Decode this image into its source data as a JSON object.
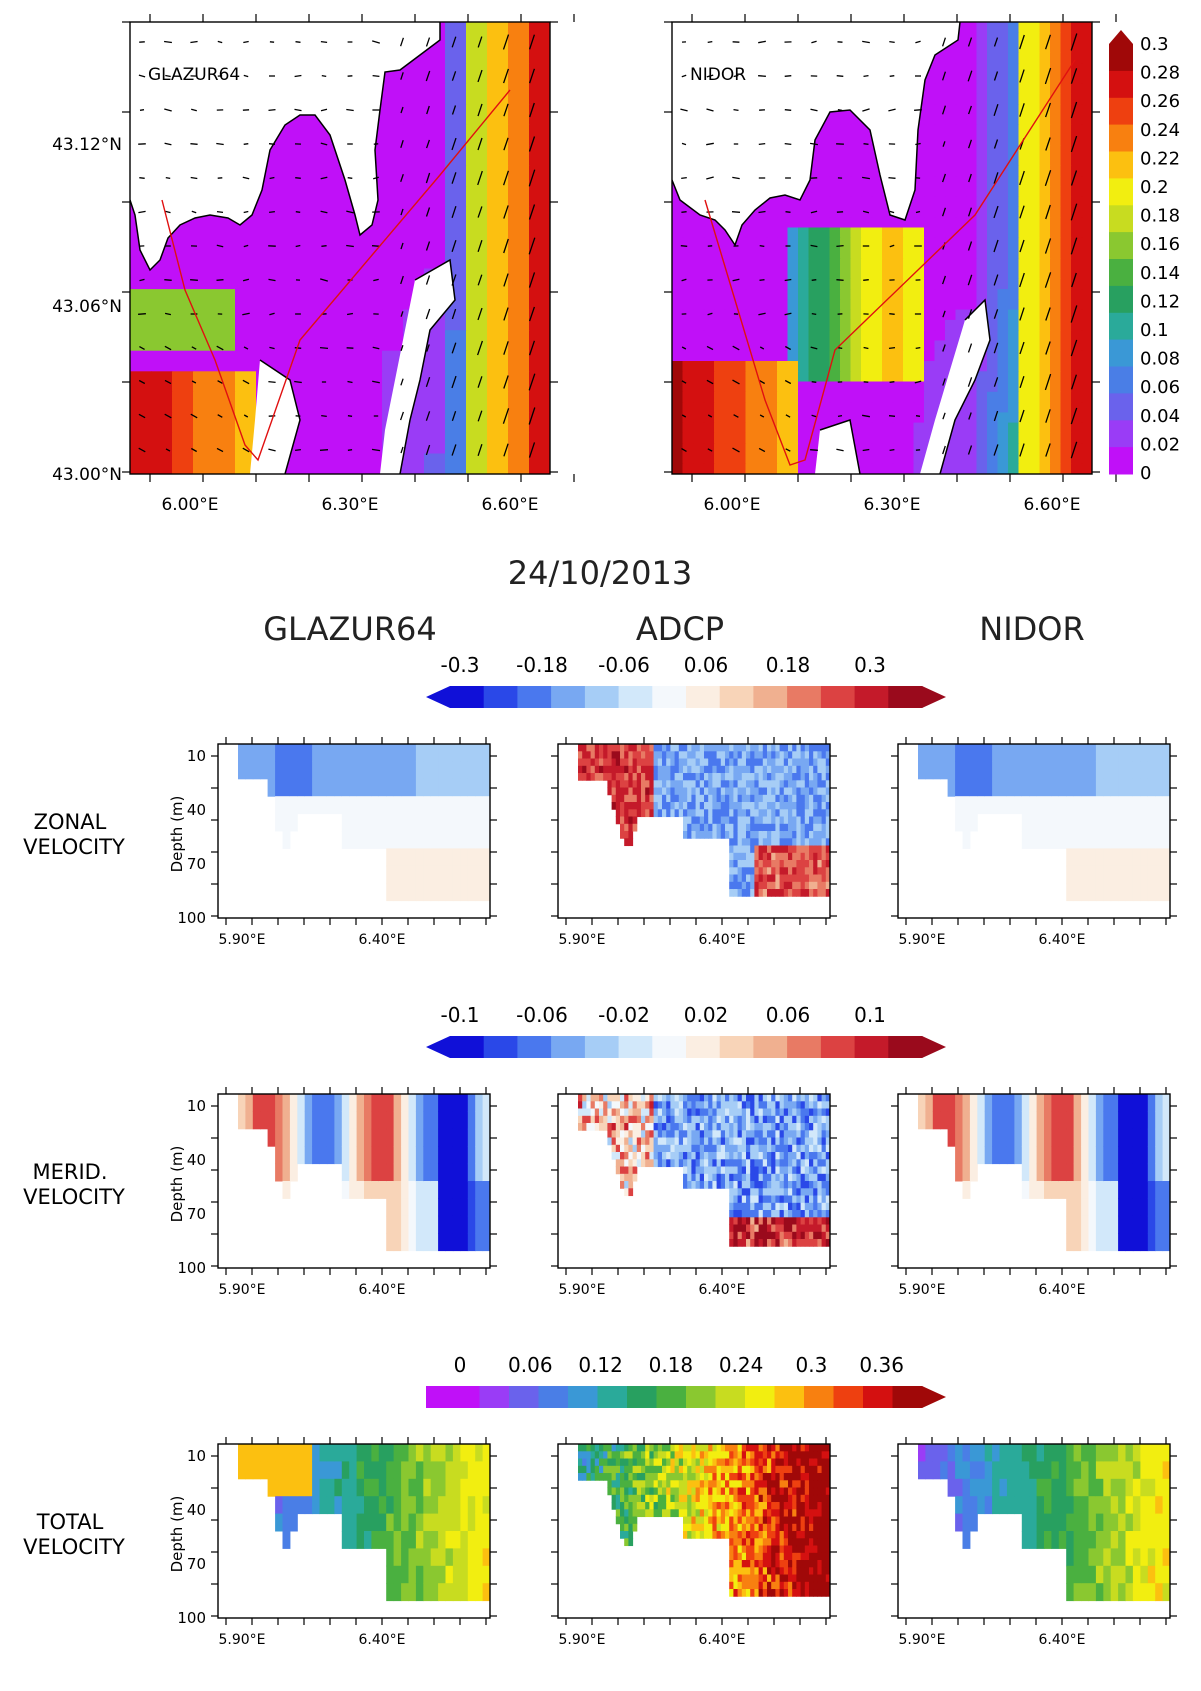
{
  "date_title": "24/10/2013",
  "columns": [
    "GLAZUR64",
    "ADCP",
    "NIDOR"
  ],
  "colors": {
    "diverging": [
      "#1010d8",
      "#2a48e8",
      "#4a78ee",
      "#78a8f2",
      "#a6cdf6",
      "#d2e8fa",
      "#f4f8fc",
      "#fbeee2",
      "#f8d4b8",
      "#f0b090",
      "#e87a64",
      "#dc4242",
      "#c41a2a",
      "#9a0a1c"
    ],
    "rainbow": [
      "#c010f8",
      "#9a3cf6",
      "#6a62ec",
      "#4a7ee6",
      "#3a98d6",
      "#2aaa9a",
      "#28a060",
      "#4ab040",
      "#8ac830",
      "#c8dc20",
      "#f2ee10",
      "#fcc010",
      "#f88010",
      "#ee4010",
      "#d41010",
      "#a00808"
    ],
    "coast": "#000000",
    "ship_track": "#e01010"
  },
  "chart_data": [
    {
      "type": "heatmap",
      "label": "GLAZUR64",
      "x_ticks": [
        "6.00°E",
        "6.30°E",
        "6.60°E"
      ],
      "y_ticks": [
        "43.00°N",
        "43.06°N",
        "43.12°N"
      ],
      "xlim": [
        5.9,
        6.7
      ],
      "ylim": [
        43.0,
        43.16
      ],
      "overlay": [
        "current vectors",
        "coastline",
        "ship track"
      ]
    },
    {
      "type": "heatmap",
      "label": "NIDOR",
      "x_ticks": [
        "6.00°E",
        "6.30°E",
        "6.60°E"
      ],
      "xlim": [
        5.9,
        6.7
      ],
      "ylim": [
        43.0,
        43.16
      ],
      "overlay": [
        "current vectors",
        "coastline",
        "ship track"
      ]
    },
    {
      "type": "colorbar",
      "orientation": "vertical",
      "labels": [
        "0.3",
        "0.28",
        "0.26",
        "0.24",
        "0.22",
        "0.2",
        "0.18",
        "0.16",
        "0.14",
        "0.12",
        "0.1",
        "0.08",
        "0.06",
        "0.04",
        "0.02",
        "0"
      ],
      "range": [
        0,
        0.3
      ]
    },
    {
      "type": "colorbar",
      "orientation": "horizontal",
      "row": "zonal",
      "labels": [
        "-0.3",
        "-0.18",
        "-0.06",
        "0.06",
        "0.18",
        "0.3"
      ],
      "range": [
        -0.3,
        0.3
      ]
    },
    {
      "type": "colorbar",
      "orientation": "horizontal",
      "row": "merid",
      "labels": [
        "-0.1",
        "-0.06",
        "-0.02",
        "0.02",
        "0.06",
        "0.1"
      ],
      "range": [
        -0.1,
        0.1
      ]
    },
    {
      "type": "colorbar",
      "orientation": "horizontal",
      "row": "total",
      "labels": [
        "0",
        "0.06",
        "0.12",
        "0.18",
        "0.24",
        "0.3",
        "0.36"
      ],
      "range": [
        0,
        0.36
      ]
    },
    {
      "type": "heatmap",
      "rows": [
        {
          "key": "zonal",
          "label_line1": "ZONAL",
          "label_line2": "VELOCITY"
        },
        {
          "key": "merid",
          "label_line1": "MERID.",
          "label_line2": "VELOCITY"
        },
        {
          "key": "total",
          "label_line1": "TOTAL",
          "label_line2": "VELOCITY"
        }
      ],
      "ylabel": "Depth (m)",
      "y_ticks": [
        "10",
        "40",
        "70",
        "100"
      ],
      "x_ticks": [
        "5.90°E",
        "6.40°E"
      ],
      "ylim": [
        0,
        100
      ]
    }
  ]
}
